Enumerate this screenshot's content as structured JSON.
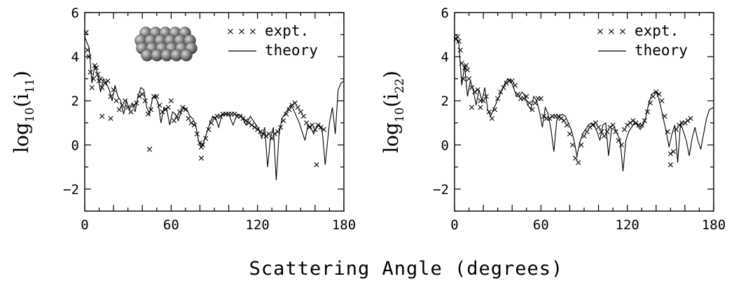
{
  "chart_data": {
    "xlabel": "Scattering Angle (degrees)",
    "legend": {
      "expt": "expt.",
      "theory": "theory"
    },
    "panels": [
      {
        "ylabel": {
          "main": "log",
          "base": "10",
          "open": "(i",
          "sub": "11",
          "close": ")"
        },
        "xlim": [
          0,
          180
        ],
        "ylim": [
          -3,
          6
        ],
        "xticks": [
          0,
          60,
          120,
          180
        ],
        "yticks": [
          -2,
          0,
          2,
          4,
          6
        ],
        "theory": {
          "x": [
            0,
            3,
            5,
            7,
            9,
            11,
            13,
            15,
            17,
            19,
            21,
            23,
            25,
            27,
            29,
            31,
            33,
            35,
            37,
            39,
            41,
            43,
            45,
            47,
            49,
            51,
            53,
            55,
            57,
            59,
            61,
            63,
            65,
            67,
            69,
            71,
            73,
            75,
            77,
            79,
            81,
            83,
            85,
            87,
            89,
            91,
            93,
            95,
            97,
            100,
            103,
            106,
            109,
            112,
            115,
            118,
            121,
            123,
            125,
            127,
            129,
            131,
            133,
            135,
            137,
            139,
            141,
            143,
            145,
            147,
            149,
            151,
            153,
            155,
            157,
            159,
            161,
            163,
            165,
            167,
            170,
            172,
            174,
            176,
            178,
            180
          ],
          "y": [
            4.9,
            4.4,
            2.8,
            3.6,
            3.2,
            2.4,
            3.0,
            2.8,
            2.5,
            2.0,
            2.7,
            2.2,
            2.0,
            1.4,
            2.0,
            1.6,
            1.9,
            1.5,
            2.2,
            2.6,
            2.5,
            1.7,
            1.4,
            2.1,
            2.2,
            1.9,
            1.0,
            1.7,
            1.6,
            0.9,
            1.5,
            1.4,
            1.1,
            1.5,
            1.7,
            1.6,
            1.3,
            1.2,
            0.9,
            0.2,
            -0.1,
            0.2,
            0.6,
            1.0,
            1.3,
            1.2,
            0.8,
            1.3,
            1.4,
            1.4,
            0.9,
            1.4,
            1.3,
            0.9,
            1.3,
            1.0,
            0.7,
            0.3,
            0.8,
            -1.0,
            0.3,
            0.8,
            -1.6,
            0.5,
            1.2,
            1.4,
            1.6,
            1.8,
            1.6,
            1.3,
            1.0,
            0.6,
            0.2,
            0.9,
            0.8,
            0.5,
            0.8,
            0.9,
            0.6,
            -0.9,
            1.0,
            1.7,
            0.5,
            2.5,
            2.8,
            2.9
          ]
        },
        "expt": {
          "x": [
            1,
            2,
            3,
            4,
            5,
            6,
            7,
            8,
            9,
            10,
            11,
            12,
            14,
            16,
            18,
            20,
            22,
            24,
            26,
            28,
            30,
            32,
            34,
            36,
            38,
            40,
            42,
            44,
            46,
            48,
            50,
            52,
            54,
            56,
            58,
            60,
            62,
            64,
            66,
            68,
            70,
            72,
            74,
            76,
            78,
            80,
            81,
            82,
            84,
            86,
            88,
            90,
            92,
            94,
            96,
            98,
            100,
            102,
            104,
            106,
            108,
            110,
            112,
            114,
            116,
            118,
            120,
            122,
            124,
            126,
            128,
            130,
            132,
            134,
            136,
            138,
            140,
            142,
            144,
            146,
            148,
            150,
            152,
            154,
            156,
            158,
            160,
            161,
            162,
            164,
            166,
            12,
            18,
            45,
            81
          ],
          "y": [
            5.1,
            4.3,
            4.0,
            3.3,
            2.6,
            3.0,
            3.6,
            3.5,
            3.2,
            2.9,
            3.0,
            2.6,
            2.8,
            2.9,
            2.2,
            2.5,
            2.0,
            1.6,
            1.8,
            2.0,
            1.7,
            1.5,
            1.8,
            1.9,
            2.2,
            2.3,
            2.0,
            1.4,
            1.6,
            2.2,
            2.2,
            1.8,
            1.5,
            1.6,
            1.7,
            2.0,
            1.1,
            1.3,
            1.5,
            1.7,
            1.6,
            1.2,
            1.0,
            0.9,
            0.5,
            0.1,
            -0.1,
            0.0,
            0.3,
            0.7,
            1.0,
            1.2,
            1.3,
            1.3,
            1.4,
            1.4,
            1.4,
            1.4,
            1.4,
            1.3,
            1.3,
            1.2,
            1.1,
            1.0,
            0.9,
            0.8,
            0.7,
            0.6,
            0.5,
            0.4,
            0.5,
            0.3,
            0.5,
            0.6,
            0.8,
            1.1,
            1.4,
            1.6,
            1.8,
            1.9,
            1.7,
            1.5,
            1.3,
            1.0,
            0.8,
            0.9,
            0.7,
            -0.9,
            0.9,
            0.8,
            0.7,
            1.3,
            1.2,
            -0.2,
            -0.6
          ]
        },
        "inset": "close-packed sphere cluster"
      },
      {
        "ylabel": {
          "main": "log",
          "base": "10",
          "open": "(i",
          "sub": "22",
          "close": ")"
        },
        "xlim": [
          0,
          180
        ],
        "ylim": [
          -3,
          6
        ],
        "xticks": [
          0,
          60,
          120,
          180
        ],
        "yticks": [
          -2,
          0,
          2,
          4,
          6
        ],
        "theory": {
          "x": [
            0,
            3,
            5,
            7,
            9,
            11,
            13,
            15,
            17,
            19,
            21,
            23,
            25,
            27,
            29,
            31,
            33,
            35,
            37,
            39,
            41,
            43,
            45,
            47,
            49,
            51,
            53,
            55,
            57,
            59,
            61,
            63,
            65,
            67,
            69,
            71,
            73,
            75,
            77,
            79,
            81,
            83,
            85,
            87,
            89,
            91,
            93,
            95,
            97,
            99,
            101,
            103,
            105,
            107,
            109,
            111,
            113,
            115,
            117,
            119,
            121,
            123,
            125,
            127,
            129,
            131,
            133,
            135,
            137,
            139,
            141,
            143,
            145,
            147,
            149,
            151,
            153,
            155,
            157,
            159,
            161,
            163,
            165,
            167,
            169,
            171,
            173,
            175,
            177,
            180
          ],
          "y": [
            4.9,
            4.6,
            2.7,
            3.6,
            2.2,
            2.9,
            2.5,
            1.8,
            2.5,
            2.0,
            2.6,
            1.6,
            1.3,
            1.6,
            1.9,
            2.2,
            2.5,
            2.8,
            3.0,
            2.9,
            2.6,
            2.2,
            2.2,
            2.4,
            2.2,
            1.8,
            1.6,
            2.2,
            2.0,
            1.5,
            0.8,
            1.7,
            1.4,
            0.7,
            -0.3,
            1.1,
            1.3,
            1.4,
            1.3,
            1.0,
            0.7,
            0.2,
            -0.5,
            0.1,
            0.5,
            0.7,
            0.9,
            1.0,
            0.9,
            0.6,
            0.2,
            0.9,
            1.0,
            -0.5,
            0.7,
            0.8,
            0.5,
            0.2,
            -1.2,
            0.2,
            0.6,
            0.8,
            1.0,
            0.9,
            0.7,
            0.9,
            1.3,
            1.9,
            2.3,
            2.4,
            2.3,
            1.8,
            1.2,
            0.6,
            -0.1,
            0.5,
            0.9,
            -0.8,
            1.0,
            0.6,
            0.2,
            -0.5,
            0.3,
            0.8,
            0.2,
            -0.2,
            0.5,
            1.2,
            1.6,
            1.7
          ]
        },
        "expt": {
          "x": [
            1,
            2,
            3,
            4,
            5,
            6,
            7,
            8,
            9,
            10,
            12,
            14,
            16,
            18,
            20,
            22,
            24,
            26,
            28,
            30,
            32,
            34,
            36,
            38,
            40,
            42,
            44,
            46,
            48,
            50,
            52,
            54,
            56,
            58,
            60,
            62,
            64,
            66,
            68,
            70,
            72,
            74,
            76,
            78,
            80,
            82,
            84,
            86,
            88,
            90,
            92,
            94,
            96,
            98,
            100,
            102,
            104,
            106,
            108,
            110,
            112,
            114,
            116,
            118,
            120,
            122,
            124,
            126,
            128,
            130,
            132,
            134,
            136,
            138,
            140,
            142,
            144,
            146,
            148,
            150,
            152,
            154,
            156,
            158,
            160,
            162,
            164,
            12,
            18,
            150
          ],
          "y": [
            4.8,
            4.9,
            4.7,
            4.3,
            3.7,
            3.0,
            3.5,
            3.6,
            3.4,
            3.0,
            2.6,
            2.4,
            2.5,
            2.0,
            2.0,
            2.2,
            1.5,
            1.2,
            1.6,
            2.1,
            2.4,
            2.6,
            2.8,
            2.9,
            2.9,
            2.7,
            2.3,
            2.1,
            2.1,
            2.2,
            1.9,
            1.6,
            1.9,
            2.1,
            2.1,
            1.3,
            1.2,
            1.2,
            1.3,
            1.3,
            1.3,
            1.2,
            1.1,
            0.9,
            0.5,
            0.0,
            -0.6,
            -0.8,
            0.0,
            0.4,
            0.6,
            0.8,
            0.9,
            1.0,
            0.8,
            0.6,
            0.4,
            0.6,
            0.8,
            0.9,
            0.6,
            0.2,
            0.0,
            0.7,
            0.9,
            1.0,
            1.1,
            1.0,
            0.9,
            0.9,
            1.1,
            1.5,
            1.9,
            2.2,
            2.4,
            2.3,
            2.0,
            1.3,
            0.6,
            -0.4,
            -0.3,
            0.7,
            0.9,
            1.0,
            1.0,
            1.1,
            1.2,
            1.7,
            1.7,
            -0.9
          ]
        }
      }
    ]
  }
}
